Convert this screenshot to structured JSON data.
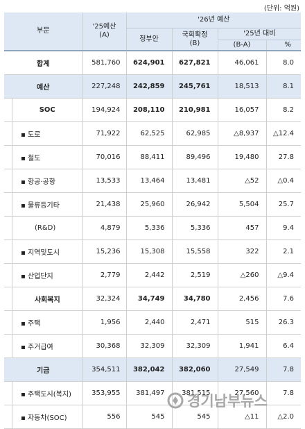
{
  "unit": "(단위: 억원)",
  "headers": {
    "category": "부문",
    "budget25": "'25예산",
    "budget25_code": "(A)",
    "budget26": "'26년 예산",
    "gov": "정부안",
    "final": "국회확정",
    "final_code": "(B)",
    "vs25": "'25년 대비",
    "diff": "(B-A)",
    "pct": "%"
  },
  "rows": [
    {
      "label": "합계",
      "b25": "581,760",
      "gov": "624,901",
      "final": "627,821",
      "diff": "46,061",
      "pct": "8.0",
      "type": "total"
    },
    {
      "label": "예산",
      "b25": "227,248",
      "gov": "242,859",
      "final": "245,761",
      "diff": "18,513",
      "pct": "8.1",
      "type": "blue"
    },
    {
      "label": "SOC",
      "b25": "194,924",
      "gov": "208,110",
      "final": "210,981",
      "diff": "16,057",
      "pct": "8.2",
      "type": "sub"
    },
    {
      "label": "▪ 도로",
      "b25": "71,922",
      "gov": "62,525",
      "final": "62,985",
      "diff": "△8,937",
      "pct": "△12.4",
      "type": "item"
    },
    {
      "label": "▪ 철도",
      "b25": "70,016",
      "gov": "88,411",
      "final": "89,496",
      "diff": "19,480",
      "pct": "27.8",
      "type": "item"
    },
    {
      "label": "▪ 항공·공항",
      "b25": "13,533",
      "gov": "13,464",
      "final": "13,481",
      "diff": "△52",
      "pct": "△0.4",
      "type": "item"
    },
    {
      "label": "▪ 물류등기타",
      "b25": "21,438",
      "gov": "25,960",
      "final": "26,942",
      "diff": "5,504",
      "pct": "25.7",
      "type": "item"
    },
    {
      "label": "(R&D)",
      "b25": "4,879",
      "gov": "5,336",
      "final": "5,336",
      "diff": "457",
      "pct": "9.4",
      "type": "rd"
    },
    {
      "label": "▪ 지역및도시",
      "b25": "15,236",
      "gov": "15,308",
      "final": "15,558",
      "diff": "322",
      "pct": "2.1",
      "type": "item"
    },
    {
      "label": "▪ 산업단지",
      "b25": "2,779",
      "gov": "2,442",
      "final": "2,519",
      "diff": "△260",
      "pct": "△9.4",
      "type": "item"
    },
    {
      "label": "사회복지",
      "b25": "32,324",
      "gov": "34,749",
      "final": "34,780",
      "diff": "2,456",
      "pct": "7.6",
      "type": "sub"
    },
    {
      "label": "▪ 주택",
      "b25": "1,956",
      "gov": "2,440",
      "final": "2,471",
      "diff": "515",
      "pct": "26.3",
      "type": "item"
    },
    {
      "label": "▪ 주거급여",
      "b25": "30,368",
      "gov": "32,309",
      "final": "32,309",
      "diff": "1,941",
      "pct": "6.4",
      "type": "item"
    },
    {
      "label": "기금",
      "b25": "354,511",
      "gov": "382,042",
      "final": "382,060",
      "diff": "27,549",
      "pct": "7.8",
      "type": "blue"
    },
    {
      "label": "▪ 주택도시(복지)",
      "b25": "353,955",
      "gov": "381,497",
      "final": "381,515",
      "diff": "27,560",
      "pct": "7.8",
      "type": "item"
    },
    {
      "label": "▪ 자동차(SOC)",
      "b25": "556",
      "gov": "545",
      "final": "545",
      "diff": "△11",
      "pct": "△2.0",
      "type": "item"
    }
  ],
  "watermark": {
    "text": "경기남부뉴스",
    "color": "#9a9a9a"
  }
}
